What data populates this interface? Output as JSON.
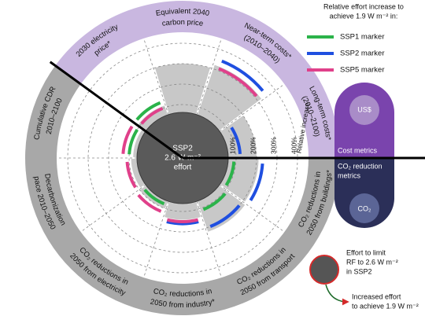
{
  "chart_data": {
    "type": "radial-bar",
    "categories": [
      [
        "Long-term costs*",
        "(2010–2100)"
      ],
      [
        "Near-term costs*",
        "(2010–2040)"
      ],
      [
        "Equivalent 2040",
        "carbon price"
      ],
      [
        "2030 electricity",
        "price*"
      ],
      [
        "Cumulative CDR",
        "2010–2100"
      ],
      [
        "Decarbonization",
        "pace 2010–2050"
      ],
      [
        "CO₂ reductions in",
        "2050 from electricity"
      ],
      [
        "CO₂ reductions in",
        "2050 from industry*"
      ],
      [
        "CO₂ reductions in",
        "2050 from transport"
      ],
      [
        "CO₂ reductions in",
        "2050 from buildings*"
      ]
    ],
    "values": [
      200,
      320,
      300,
      110,
      80,
      90,
      100,
      140,
      220,
      210
    ],
    "color": "#c8c8c8",
    "series": [
      {
        "name": "SSP1 marker",
        "color": "#2bb34a",
        "values": [
          null,
          null,
          null,
          130,
          100,
          null,
          80,
          null,
          110,
          90
        ]
      },
      {
        "name": "SSP2 marker",
        "color": "#1f4fe0",
        "values": [
          120,
          350,
          null,
          null,
          null,
          null,
          null,
          160,
          200,
          230
        ]
      },
      {
        "name": "SSP5 marker",
        "color": "#e0408a",
        "values": [
          null,
          310,
          null,
          100,
          130,
          110,
          120,
          150,
          null,
          null
        ]
      }
    ],
    "rlim": [
      0,
      400
    ],
    "rticks": [
      {
        "value": 100,
        "label": "100%"
      },
      {
        "value": 200,
        "label": "200%"
      },
      {
        "value": 300,
        "label": "300%"
      },
      {
        "value": 400,
        "label": "400%"
      }
    ],
    "r_axis_label": "Relative increase",
    "legend_title": [
      "Relative effort increase to",
      "achieve 1.9 W m⁻² in:"
    ],
    "center_label": [
      "SSP2",
      "2.6 W m⁻²",
      "effort"
    ],
    "groups": [
      {
        "name": [
          "Cost metrics"
        ],
        "icon": "US$"
      },
      {
        "name": [
          "CO₂ reduction",
          "metrics"
        ],
        "icon": "CO₂"
      }
    ],
    "key": {
      "circle": [
        "Effort to limit",
        "RF to 2.6 W m⁻²",
        "in SSP2"
      ],
      "arrow": [
        "Increased effort",
        "to achieve 1.9 W m⁻²"
      ]
    }
  }
}
